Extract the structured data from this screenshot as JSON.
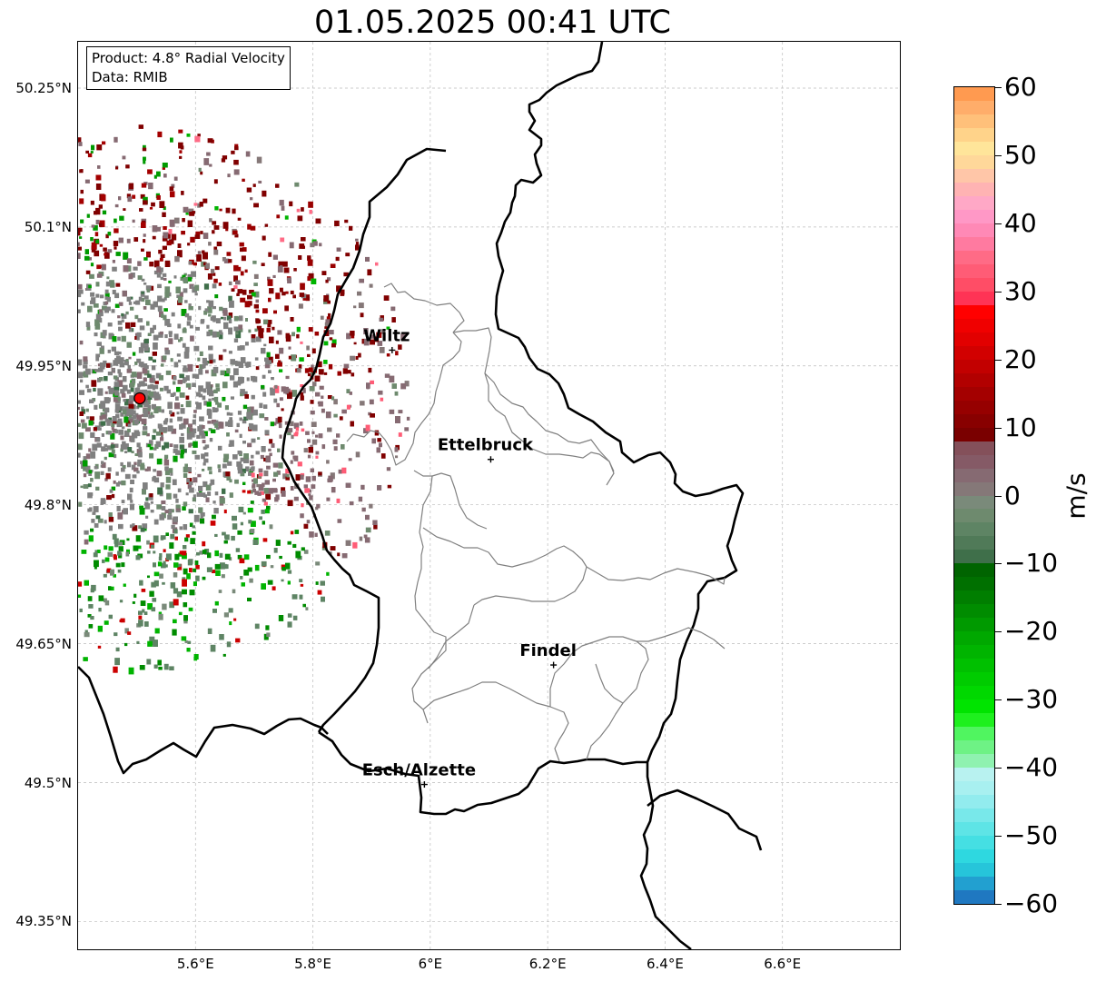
{
  "title": "01.05.2025 00:41 UTC",
  "info": {
    "product": "Product: 4.8° Radial Velocity",
    "data_source": "Data: RMIB"
  },
  "map": {
    "lon_range": [
      5.4,
      6.8
    ],
    "lat_range": [
      49.32,
      50.3
    ],
    "lat_ticks": [
      "50.25°N",
      "50.1°N",
      "49.95°N",
      "49.8°N",
      "49.65°N",
      "49.5°N",
      "49.35°N"
    ],
    "lon_ticks": [
      "5.6°E",
      "5.8°E",
      "6°E",
      "6.2°E",
      "6.4°E",
      "6.6°E"
    ],
    "gridlines": true,
    "radar_site": {
      "lon": 5.505,
      "lat": 49.915,
      "color": "#ff0000"
    },
    "cities": [
      {
        "name": "Wiltz",
        "lon": 5.935,
        "lat": 49.967
      },
      {
        "name": "Ettelbruck",
        "lon": 6.103,
        "lat": 49.849
      },
      {
        "name": "Findel",
        "lon": 6.21,
        "lat": 49.627
      },
      {
        "name": "Esch/Alzette",
        "lon": 5.99,
        "lat": 49.498
      }
    ]
  },
  "colorbar": {
    "label": "m/s",
    "min": -60,
    "max": 60,
    "ticks": [
      "60",
      "50",
      "40",
      "30",
      "20",
      "10",
      "0",
      "−10",
      "−20",
      "−30",
      "−40",
      "−50",
      "−60"
    ],
    "colors_bottom_to_top": [
      "#1f78c1",
      "#22a0d0",
      "#26c5da",
      "#2ed8e0",
      "#45dfe3",
      "#5ee4e6",
      "#78e8ea",
      "#92ecee",
      "#a8f0f0",
      "#b8f2f0",
      "#8ff2b0",
      "#6ef285",
      "#50f560",
      "#1ef01e",
      "#00e400",
      "#00d800",
      "#00cc00",
      "#00c000",
      "#00b400",
      "#00a800",
      "#009a00",
      "#008c00",
      "#007e00",
      "#007000",
      "#006400",
      "#3f6f4a",
      "#507a58",
      "#5e8464",
      "#6e8a6e",
      "#7a8a7a",
      "#857878",
      "#866a72",
      "#855a66",
      "#84505a",
      "#7a0000",
      "#880000",
      "#960000",
      "#a40000",
      "#b20000",
      "#c20000",
      "#d20000",
      "#e20000",
      "#f00000",
      "#ff0000",
      "#ff3355",
      "#ff4d66",
      "#ff5c76",
      "#ff6b86",
      "#ff7aa0",
      "#ff89b6",
      "#ff98c6",
      "#ffa8c6",
      "#ffb3b3",
      "#ffc6a8",
      "#ffd89a",
      "#ffe59a",
      "#ffd38a",
      "#ffc07a",
      "#ffad6a",
      "#ff9a50"
    ]
  }
}
